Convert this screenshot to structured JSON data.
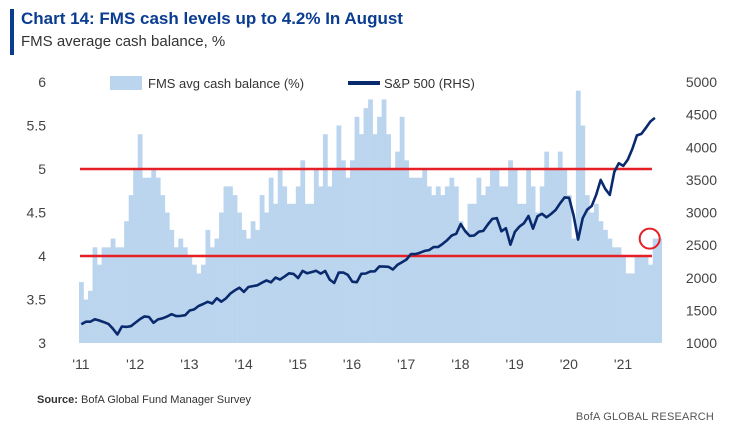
{
  "header": {
    "title": "Chart 14: FMS cash levels up to 4.2% In August",
    "subtitle": "FMS average cash balance, %"
  },
  "footer": {
    "source_label": "Source:",
    "source_text": "BofA Global Fund Manager Survey",
    "brand": "BofA GLOBAL RESEARCH"
  },
  "colors": {
    "bars": "#bcd5ee",
    "line": "#0a2a6e",
    "reference_lines": "#e41f26",
    "title": "#0a3d91"
  },
  "chart_data": {
    "type": "bar+line",
    "title": "Chart 14: FMS cash levels up to 4.2% In August",
    "subtitle": "FMS average cash balance, %",
    "legend_position": "top",
    "x_ticks": [
      "'11",
      "'12",
      "'13",
      "'14",
      "'15",
      "'16",
      "'17",
      "'18",
      "'19",
      "'20",
      "'21"
    ],
    "y_left": {
      "ticks": [
        "6",
        "5.5",
        "5",
        "4.5",
        "4",
        "3.5",
        "3"
      ],
      "range": [
        3,
        6
      ]
    },
    "y_right": {
      "ticks": [
        "5000",
        "4500",
        "4000",
        "3500",
        "3000",
        "2500",
        "2000",
        "1500",
        "1000"
      ],
      "range": [
        1000,
        5000
      ]
    },
    "reference_lines": [
      5.0,
      4.0
    ],
    "highlight": {
      "date": "2021-08",
      "value": 4.2
    },
    "series": [
      {
        "name": "FMS avg cash balance (%)",
        "type": "bar",
        "axis": "left",
        "start": "2011-01",
        "values": [
          3.7,
          3.5,
          3.6,
          4.1,
          3.9,
          4.1,
          4.1,
          4.2,
          4.1,
          4.1,
          4.4,
          4.7,
          5.0,
          5.4,
          4.9,
          4.9,
          5.0,
          4.9,
          4.7,
          4.5,
          4.3,
          4.1,
          4.2,
          4.1,
          4.0,
          3.9,
          3.8,
          3.9,
          4.3,
          4.1,
          4.2,
          4.5,
          4.8,
          4.8,
          4.7,
          4.5,
          4.3,
          4.2,
          4.4,
          4.3,
          4.7,
          4.5,
          4.9,
          4.6,
          5.0,
          4.8,
          4.6,
          4.6,
          4.8,
          5.1,
          4.6,
          4.6,
          5.0,
          4.8,
          5.4,
          4.8,
          5.0,
          5.5,
          5.1,
          4.9,
          5.1,
          5.6,
          5.4,
          5.7,
          5.8,
          5.4,
          5.6,
          5.8,
          5.4,
          5.0,
          5.2,
          5.6,
          5.1,
          4.9,
          4.9,
          4.9,
          5.0,
          4.8,
          4.7,
          4.8,
          4.7,
          4.8,
          4.9,
          4.8,
          4.4,
          4.3,
          4.6,
          4.6,
          4.9,
          4.7,
          4.8,
          5.0,
          5.0,
          4.8,
          4.8,
          5.1,
          5.0,
          4.6,
          4.6,
          5.0,
          4.8,
          4.5,
          4.8,
          5.2,
          5.0,
          5.0,
          5.2,
          5.0,
          4.7,
          4.2,
          5.9,
          5.5,
          4.7,
          4.5,
          4.6,
          4.4,
          4.3,
          4.2,
          4.1,
          4.1,
          4.0,
          3.8,
          3.8,
          4.0,
          4.0,
          4.0,
          3.9,
          4.2,
          4.2
        ]
      },
      {
        "name": "S&P 500 (RHS)",
        "type": "line",
        "axis": "right",
        "points": [
          [
            "2011-01",
            1286
          ],
          [
            "2011-02",
            1327
          ],
          [
            "2011-03",
            1326
          ],
          [
            "2011-04",
            1364
          ],
          [
            "2011-05",
            1345
          ],
          [
            "2011-06",
            1321
          ],
          [
            "2011-07",
            1292
          ],
          [
            "2011-08",
            1219
          ],
          [
            "2011-09",
            1131
          ],
          [
            "2011-10",
            1253
          ],
          [
            "2011-11",
            1247
          ],
          [
            "2011-12",
            1258
          ],
          [
            "2012-01",
            1312
          ],
          [
            "2012-02",
            1366
          ],
          [
            "2012-03",
            1408
          ],
          [
            "2012-04",
            1398
          ],
          [
            "2012-05",
            1310
          ],
          [
            "2012-06",
            1362
          ],
          [
            "2012-07",
            1379
          ],
          [
            "2012-08",
            1406
          ],
          [
            "2012-09",
            1441
          ],
          [
            "2012-10",
            1412
          ],
          [
            "2012-11",
            1416
          ],
          [
            "2012-12",
            1426
          ],
          [
            "2013-01",
            1498
          ],
          [
            "2013-02",
            1515
          ],
          [
            "2013-03",
            1569
          ],
          [
            "2013-04",
            1598
          ],
          [
            "2013-05",
            1631
          ],
          [
            "2013-06",
            1606
          ],
          [
            "2013-07",
            1686
          ],
          [
            "2013-08",
            1633
          ],
          [
            "2013-09",
            1682
          ],
          [
            "2013-10",
            1757
          ],
          [
            "2013-11",
            1806
          ],
          [
            "2013-12",
            1848
          ],
          [
            "2014-01",
            1783
          ],
          [
            "2014-02",
            1859
          ],
          [
            "2014-03",
            1872
          ],
          [
            "2014-04",
            1884
          ],
          [
            "2014-05",
            1924
          ],
          [
            "2014-06",
            1960
          ],
          [
            "2014-07",
            1931
          ],
          [
            "2014-08",
            2003
          ],
          [
            "2014-09",
            1972
          ],
          [
            "2014-10",
            2018
          ],
          [
            "2014-11",
            2068
          ],
          [
            "2014-12",
            2059
          ],
          [
            "2015-01",
            1995
          ],
          [
            "2015-02",
            2105
          ],
          [
            "2015-03",
            2068
          ],
          [
            "2015-04",
            2086
          ],
          [
            "2015-05",
            2107
          ],
          [
            "2015-06",
            2063
          ],
          [
            "2015-07",
            2104
          ],
          [
            "2015-08",
            1972
          ],
          [
            "2015-09",
            1920
          ],
          [
            "2015-10",
            2079
          ],
          [
            "2015-11",
            2080
          ],
          [
            "2015-12",
            2044
          ],
          [
            "2016-01",
            1940
          ],
          [
            "2016-02",
            1932
          ],
          [
            "2016-03",
            2060
          ],
          [
            "2016-04",
            2065
          ],
          [
            "2016-05",
            2097
          ],
          [
            "2016-06",
            2099
          ],
          [
            "2016-07",
            2174
          ],
          [
            "2016-08",
            2171
          ],
          [
            "2016-09",
            2168
          ],
          [
            "2016-10",
            2126
          ],
          [
            "2016-11",
            2199
          ],
          [
            "2016-12",
            2239
          ],
          [
            "2017-01",
            2279
          ],
          [
            "2017-02",
            2364
          ],
          [
            "2017-03",
            2363
          ],
          [
            "2017-04",
            2384
          ],
          [
            "2017-05",
            2412
          ],
          [
            "2017-06",
            2423
          ],
          [
            "2017-07",
            2470
          ],
          [
            "2017-08",
            2472
          ],
          [
            "2017-09",
            2519
          ],
          [
            "2017-10",
            2575
          ],
          [
            "2017-11",
            2648
          ],
          [
            "2017-12",
            2674
          ],
          [
            "2018-01",
            2824
          ],
          [
            "2018-02",
            2714
          ],
          [
            "2018-03",
            2641
          ],
          [
            "2018-04",
            2648
          ],
          [
            "2018-05",
            2705
          ],
          [
            "2018-06",
            2718
          ],
          [
            "2018-07",
            2816
          ],
          [
            "2018-08",
            2902
          ],
          [
            "2018-09",
            2914
          ],
          [
            "2018-10",
            2712
          ],
          [
            "2018-11",
            2760
          ],
          [
            "2018-12",
            2507
          ],
          [
            "2019-01",
            2704
          ],
          [
            "2019-02",
            2784
          ],
          [
            "2019-03",
            2834
          ],
          [
            "2019-04",
            2946
          ],
          [
            "2019-05",
            2752
          ],
          [
            "2019-06",
            2942
          ],
          [
            "2019-07",
            2980
          ],
          [
            "2019-08",
            2926
          ],
          [
            "2019-09",
            2977
          ],
          [
            "2019-10",
            3038
          ],
          [
            "2019-11",
            3141
          ],
          [
            "2019-12",
            3231
          ],
          [
            "2020-01",
            3226
          ],
          [
            "2020-02",
            2954
          ],
          [
            "2020-03",
            2585
          ],
          [
            "2020-04",
            2912
          ],
          [
            "2020-05",
            3044
          ],
          [
            "2020-06",
            3100
          ],
          [
            "2020-07",
            3271
          ],
          [
            "2020-08",
            3500
          ],
          [
            "2020-09",
            3363
          ],
          [
            "2020-10",
            3270
          ],
          [
            "2020-11",
            3622
          ],
          [
            "2020-12",
            3756
          ],
          [
            "2021-01",
            3714
          ],
          [
            "2021-02",
            3811
          ],
          [
            "2021-03",
            3973
          ],
          [
            "2021-04",
            4181
          ],
          [
            "2021-05",
            4204
          ],
          [
            "2021-06",
            4298
          ],
          [
            "2021-07",
            4395
          ],
          [
            "2021-08",
            4450
          ]
        ]
      }
    ]
  }
}
